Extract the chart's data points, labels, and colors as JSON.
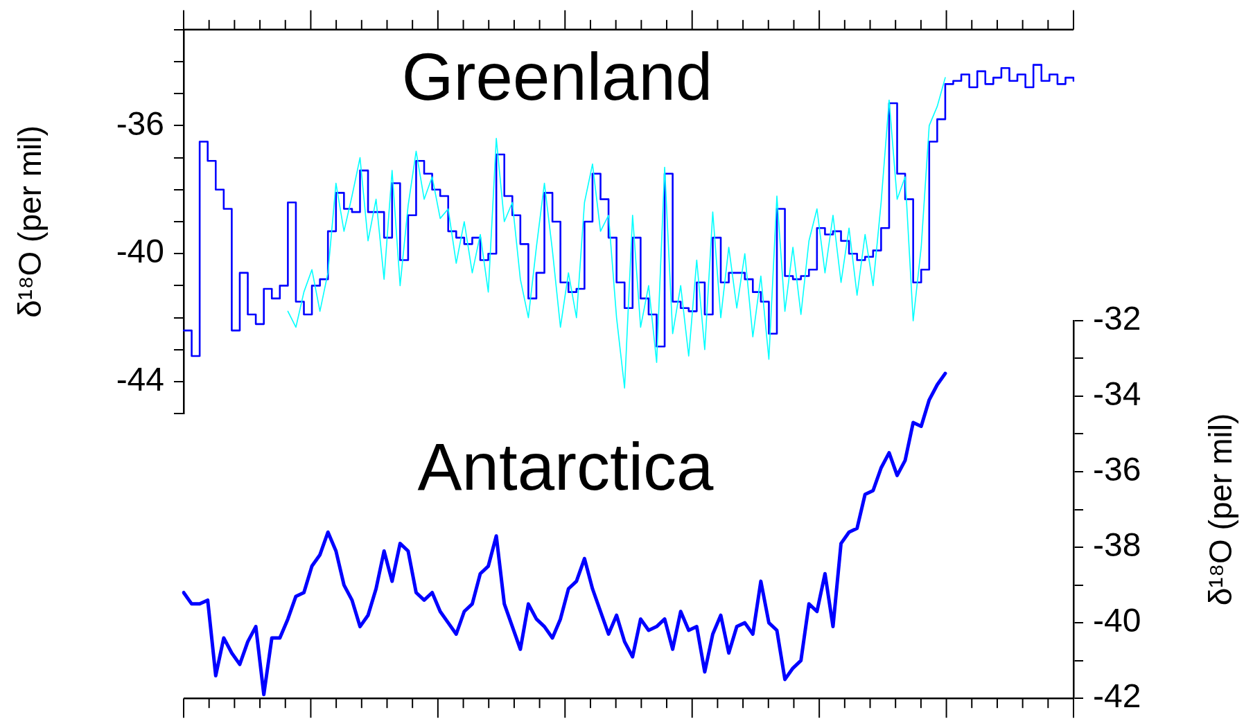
{
  "chart_data": [
    {
      "type": "line",
      "title": "Greenland",
      "ylabel": "δ¹⁸O (per mil)",
      "tick_labels": "y",
      "categories": [
        null,
        null,
        null,
        null,
        null,
        null,
        null,
        null,
        null,
        null,
        null,
        null,
        null,
        null,
        null,
        null,
        null,
        null,
        null,
        null,
        null,
        null,
        null,
        null,
        null,
        null,
        null,
        null,
        null,
        null,
        null,
        null,
        null,
        null,
        null,
        null,
        null,
        null,
        null,
        null,
        null,
        null,
        null,
        null,
        null,
        null,
        null,
        null,
        null,
        null,
        null,
        null,
        null,
        null,
        null,
        null,
        null,
        null,
        null,
        null,
        null,
        null,
        null,
        null,
        null,
        null,
        null,
        null,
        null,
        null,
        null,
        null,
        null,
        null,
        null,
        null,
        null,
        null,
        null,
        null,
        null,
        null,
        null,
        null,
        null,
        null,
        null,
        null,
        null,
        null,
        null,
        null,
        null,
        null,
        null,
        null,
        null,
        null,
        null,
        null,
        null,
        null,
        null,
        null,
        null,
        null,
        null,
        null,
        null,
        null,
        null,
        null
      ],
      "ylim": [
        -45,
        -33
      ],
      "yticks": [
        {
          "value": -45,
          "label": null
        },
        {
          "value": -44,
          "label": "-44"
        },
        {
          "value": -43,
          "label": null
        },
        {
          "value": -42,
          "label": null
        },
        {
          "value": -41,
          "label": null
        },
        {
          "value": -40,
          "label": "-40"
        },
        {
          "value": -39,
          "label": null
        },
        {
          "value": -38,
          "label": null
        },
        {
          "value": -37,
          "label": null
        },
        {
          "value": -36,
          "label": "-36"
        },
        {
          "value": -35,
          "label": null
        },
        {
          "value": -34,
          "label": null
        },
        {
          "value": -33,
          "label": null
        }
      ],
      "series": [
        {
          "color": "#00ffff",
          "values": [
            null,
            null,
            null,
            null,
            null,
            null,
            null,
            null,
            null,
            null,
            null,
            null,
            null,
            -41.8,
            -42.3,
            -41.2,
            -40.5,
            -41.8,
            -40.6,
            -37.8,
            -39.3,
            -38.2,
            -37.0,
            -39.6,
            -38.3,
            -40.8,
            -37.4,
            -41.0,
            -38.5,
            -36.8,
            -38.3,
            -37.6,
            -38.9,
            -38.6,
            -40.3,
            -39.0,
            -40.6,
            -39.4,
            -41.2,
            -36.4,
            -39.0,
            -38.4,
            -40.8,
            -42.0,
            -39.8,
            -37.8,
            -39.9,
            -42.3,
            -40.6,
            -42.0,
            -38.4,
            -37.2,
            -39.3,
            -38.8,
            -42.0,
            -44.2,
            -38.8,
            -42.3,
            -41.0,
            -43.4,
            -37.3,
            -42.5,
            -41.0,
            -43.2,
            -40.2,
            -43.0,
            -38.7,
            -42.0,
            -39.8,
            -41.7,
            -40.0,
            -42.6,
            -40.7,
            -43.3,
            -38.2,
            -41.8,
            -39.8,
            -41.9,
            -39.6,
            -38.6,
            -40.6,
            -38.8,
            -40.9,
            -39.2,
            -41.3,
            -39.4,
            -41.0,
            -38.4,
            -35.2,
            -38.3,
            -37.6,
            -42.1,
            -39.8,
            -36.0,
            -35.4,
            -34.5,
            null,
            null,
            null,
            null,
            null,
            null,
            null,
            null,
            null,
            null,
            null,
            null,
            null,
            null,
            null,
            null
          ]
        },
        {
          "type": "step",
          "color": "#0000ff",
          "values": [
            -42.4,
            -43.2,
            -36.5,
            -37.1,
            -38.0,
            -38.6,
            -42.4,
            -40.6,
            -41.9,
            -42.2,
            -41.1,
            -41.4,
            -41.0,
            -38.4,
            -41.5,
            -41.9,
            -41.0,
            -40.8,
            -39.3,
            -38.1,
            -38.6,
            -38.7,
            -37.4,
            -38.7,
            -38.7,
            -39.5,
            -37.8,
            -40.2,
            -38.8,
            -37.1,
            -37.5,
            -38.0,
            -38.2,
            -39.3,
            -39.5,
            -39.7,
            -39.5,
            -40.2,
            -40.0,
            -36.9,
            -38.2,
            -38.8,
            -39.7,
            -41.4,
            -40.6,
            -38.1,
            -39.0,
            -40.9,
            -41.2,
            -41.1,
            -39.0,
            -37.5,
            -38.3,
            -39.5,
            -40.9,
            -41.7,
            -39.5,
            -41.4,
            -41.9,
            -42.9,
            -37.5,
            -41.5,
            -41.7,
            -41.8,
            -40.9,
            -41.9,
            -39.5,
            -40.9,
            -40.6,
            -40.6,
            -40.8,
            -41.2,
            -41.5,
            -42.5,
            -38.6,
            -40.7,
            -40.8,
            -40.7,
            -40.5,
            -39.2,
            -39.4,
            -39.3,
            -39.6,
            -40.0,
            -40.2,
            -40.1,
            -39.9,
            -39.2,
            -35.3,
            -37.5,
            -38.3,
            -40.9,
            -40.5,
            -36.5,
            -35.8,
            -34.7,
            -34.6,
            -34.4,
            -34.8,
            -34.3,
            -34.7,
            -34.5,
            -34.2,
            -34.6,
            -34.4,
            -34.8,
            -34.1,
            -34.6,
            -34.4,
            -34.7,
            -34.5,
            -34.6
          ]
        }
      ]
    },
    {
      "type": "line",
      "title": "Antarctica",
      "ylabel": "δ¹⁸O (per mil)",
      "tick_labels": "y",
      "categories": [
        null,
        null,
        null,
        null,
        null,
        null,
        null,
        null,
        null,
        null,
        null,
        null,
        null,
        null,
        null,
        null,
        null,
        null,
        null,
        null,
        null,
        null,
        null,
        null,
        null,
        null,
        null,
        null,
        null,
        null,
        null,
        null,
        null,
        null,
        null,
        null,
        null,
        null,
        null,
        null,
        null,
        null,
        null,
        null,
        null,
        null,
        null,
        null,
        null,
        null,
        null,
        null,
        null,
        null,
        null,
        null,
        null,
        null,
        null,
        null,
        null,
        null,
        null,
        null,
        null,
        null,
        null,
        null,
        null,
        null,
        null,
        null,
        null,
        null,
        null,
        null,
        null,
        null,
        null,
        null,
        null,
        null,
        null,
        null,
        null,
        null,
        null,
        null,
        null,
        null,
        null,
        null,
        null,
        null,
        null,
        null,
        null,
        null,
        null,
        null,
        null,
        null,
        null,
        null,
        null,
        null,
        null,
        null,
        null,
        null,
        null,
        null
      ],
      "ylim": [
        -42,
        -32
      ],
      "yticks": [
        -42,
        {
          "value": -41,
          "label": null
        },
        -40,
        {
          "value": -39,
          "label": null
        },
        -38,
        {
          "value": -37,
          "label": null
        },
        -36,
        {
          "value": -35,
          "label": null
        },
        -34,
        {
          "value": -33,
          "label": null
        },
        -32
      ],
      "series": [
        {
          "color": "#0000ff",
          "values": [
            -39.2,
            -39.5,
            -39.5,
            -39.4,
            -41.4,
            -40.4,
            -40.8,
            -41.1,
            -40.5,
            -40.1,
            -41.9,
            -40.4,
            -40.4,
            -39.9,
            -39.3,
            -39.2,
            -38.5,
            -38.2,
            -37.6,
            -38.1,
            -39.0,
            -39.4,
            -40.1,
            -39.8,
            -39.1,
            -38.1,
            -38.9,
            -37.9,
            -38.1,
            -39.2,
            -39.4,
            -39.2,
            -39.7,
            -40.0,
            -40.3,
            -39.7,
            -39.5,
            -38.7,
            -38.5,
            -37.7,
            -39.5,
            -40.1,
            -40.7,
            -39.5,
            -39.9,
            -40.1,
            -40.4,
            -39.9,
            -39.1,
            -38.9,
            -38.3,
            -39.1,
            -39.7,
            -40.3,
            -39.8,
            -40.5,
            -40.9,
            -39.9,
            -40.2,
            -40.1,
            -39.9,
            -40.7,
            -39.7,
            -40.2,
            -40.1,
            -41.3,
            -40.3,
            -39.8,
            -40.8,
            -40.1,
            -40.0,
            -40.3,
            -38.9,
            -40.0,
            -40.2,
            -41.5,
            -41.2,
            -41.0,
            -39.5,
            -39.7,
            -38.7,
            -40.1,
            -37.9,
            -37.6,
            -37.5,
            -36.6,
            -36.5,
            -35.9,
            -35.5,
            -36.1,
            -35.7,
            -34.7,
            -34.8,
            -34.1,
            -33.7,
            -33.4,
            null,
            null,
            null,
            null,
            null,
            null,
            null,
            null,
            null,
            null,
            null,
            null,
            null,
            null,
            null,
            null
          ]
        }
      ]
    }
  ]
}
